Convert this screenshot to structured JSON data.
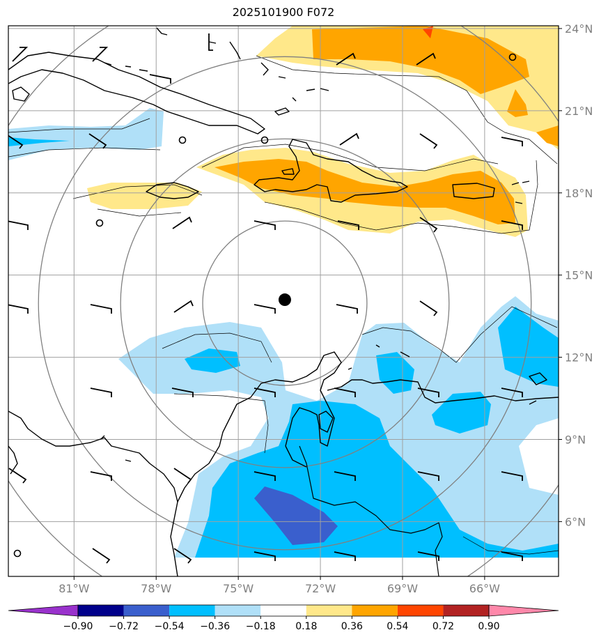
{
  "title": "2025101900 F072",
  "map": {
    "lon_range": [
      -83.4,
      -63.3
    ],
    "lat_range": [
      4.0,
      24.1
    ],
    "lat_ticks": [
      "24°N",
      "21°N",
      "18°N",
      "15°N",
      "12°N",
      "9°N",
      "6°N"
    ],
    "lat_values": [
      24,
      21,
      18,
      15,
      12,
      9,
      6
    ],
    "lon_ticks": [
      "81°W",
      "78°W",
      "75°W",
      "72°W",
      "69°W",
      "66°W"
    ],
    "lon_values": [
      -81,
      -78,
      -75,
      -72,
      -69,
      -66
    ],
    "center_marker": {
      "lon": -73.3,
      "lat": 14.1
    },
    "range_rings_deg": [
      3,
      6,
      9,
      12
    ],
    "grid_color": "#a0a0a0",
    "ring_color": "#808080"
  },
  "colorbar": {
    "levels": [
      "−0.90",
      "−0.72",
      "−0.54",
      "−0.36",
      "−0.18",
      "0.18",
      "0.36",
      "0.54",
      "0.72",
      "0.90"
    ],
    "colors": [
      "#9932cc",
      "#00008b",
      "#3a5fcd",
      "#00bfff",
      "#b0e0f8",
      "#ffffff",
      "#ffe88a",
      "#ffa500",
      "#ff4500",
      "#b22222",
      "#ff88aa"
    ]
  }
}
